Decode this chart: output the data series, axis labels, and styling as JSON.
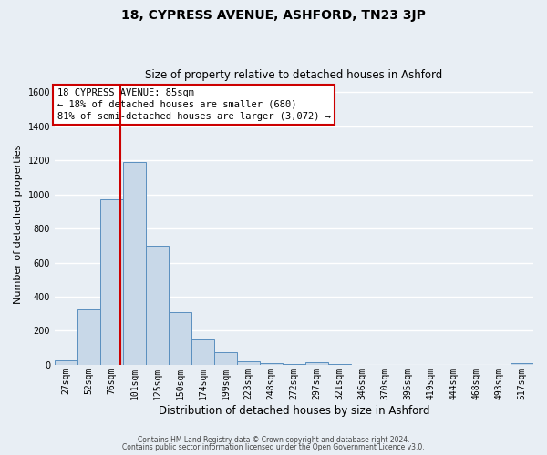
{
  "title": "18, CYPRESS AVENUE, ASHFORD, TN23 3JP",
  "subtitle": "Size of property relative to detached houses in Ashford",
  "xlabel": "Distribution of detached houses by size in Ashford",
  "ylabel": "Number of detached properties",
  "bar_labels": [
    "27sqm",
    "52sqm",
    "76sqm",
    "101sqm",
    "125sqm",
    "150sqm",
    "174sqm",
    "199sqm",
    "223sqm",
    "248sqm",
    "272sqm",
    "297sqm",
    "321sqm",
    "346sqm",
    "370sqm",
    "395sqm",
    "419sqm",
    "444sqm",
    "468sqm",
    "493sqm",
    "517sqm"
  ],
  "bar_values": [
    25,
    325,
    970,
    1190,
    700,
    310,
    150,
    75,
    20,
    10,
    5,
    15,
    5,
    0,
    0,
    0,
    0,
    0,
    0,
    0,
    10
  ],
  "bar_color": "#c8d8e8",
  "bar_edge_color": "#5a8fbf",
  "property_line_color": "#cc0000",
  "property_line_index": 2.36,
  "ylim": [
    0,
    1650
  ],
  "yticks": [
    0,
    200,
    400,
    600,
    800,
    1000,
    1200,
    1400,
    1600
  ],
  "annotation_title": "18 CYPRESS AVENUE: 85sqm",
  "annotation_line1": "← 18% of detached houses are smaller (680)",
  "annotation_line2": "81% of semi-detached houses are larger (3,072) →",
  "annotation_box_color": "#cc0000",
  "footer_line1": "Contains HM Land Registry data © Crown copyright and database right 2024.",
  "footer_line2": "Contains public sector information licensed under the Open Government Licence v3.0.",
  "background_color": "#e8eef4",
  "grid_color": "#ffffff",
  "title_fontsize": 10,
  "subtitle_fontsize": 8.5,
  "xlabel_fontsize": 8.5,
  "ylabel_fontsize": 8,
  "tick_fontsize": 7,
  "annotation_fontsize": 7.5,
  "footer_fontsize": 5.5
}
